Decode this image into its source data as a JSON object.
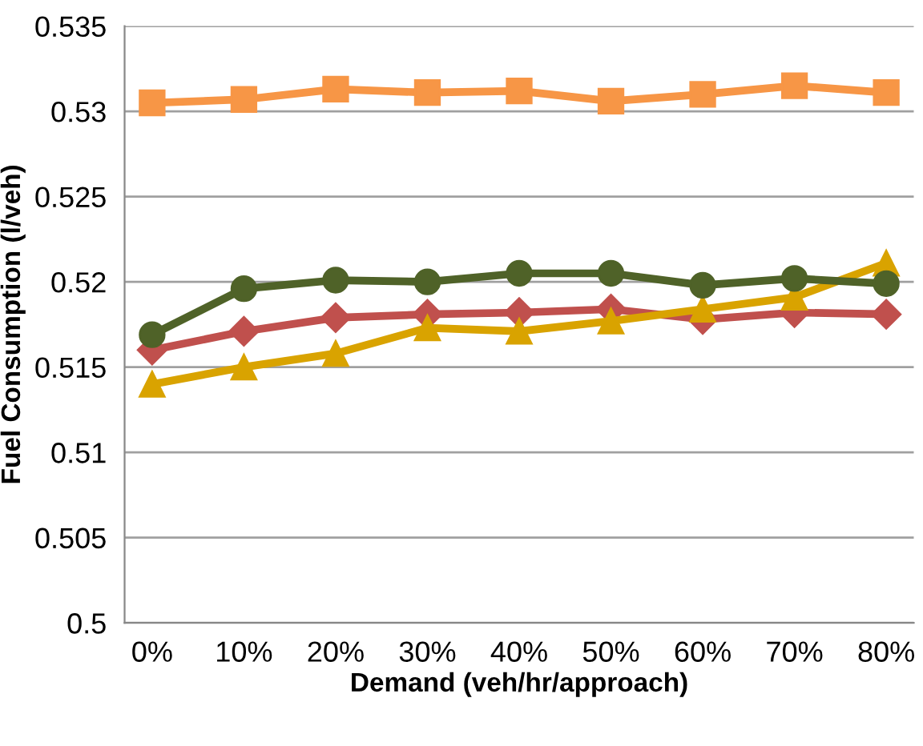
{
  "chart_data": {
    "type": "line",
    "xlabel": "Demand (veh/hr/approach)",
    "ylabel": "Fuel Consumption (l/veh)",
    "categories": [
      "0%",
      "10%",
      "20%",
      "30%",
      "40%",
      "50%",
      "60%",
      "70%",
      "80%"
    ],
    "series": [
      {
        "color": "#f79646",
        "marker": "square",
        "values": [
          0.5305,
          0.5307,
          0.5313,
          0.5311,
          0.5312,
          0.5306,
          0.531,
          0.5315,
          0.5311
        ]
      },
      {
        "color": "#c0504d",
        "marker": "diamond",
        "values": [
          0.516,
          0.5171,
          0.5179,
          0.5181,
          0.5182,
          0.5184,
          0.5178,
          0.5182,
          0.5181
        ]
      },
      {
        "color": "#d9a300",
        "marker": "triangle",
        "values": [
          0.514,
          0.515,
          0.5158,
          0.5173,
          0.5171,
          0.5177,
          0.5184,
          0.5191,
          0.5211
        ]
      },
      {
        "color": "#4f6228",
        "marker": "circle",
        "values": [
          0.5169,
          0.5196,
          0.5201,
          0.52,
          0.5205,
          0.5205,
          0.5198,
          0.5202,
          0.5199
        ]
      }
    ],
    "ylim": [
      0.5,
      0.535
    ],
    "yticks": [
      {
        "value": 0.5,
        "label": "0.5"
      },
      {
        "value": 0.505,
        "label": "0.505"
      },
      {
        "value": 0.51,
        "label": "0.51"
      },
      {
        "value": 0.515,
        "label": "0.515"
      },
      {
        "value": 0.52,
        "label": "0.52"
      },
      {
        "value": 0.525,
        "label": "0.525"
      },
      {
        "value": 0.53,
        "label": "0.53"
      },
      {
        "value": 0.535,
        "label": "0.535"
      }
    ],
    "grid": "y",
    "line_style": "solid"
  }
}
